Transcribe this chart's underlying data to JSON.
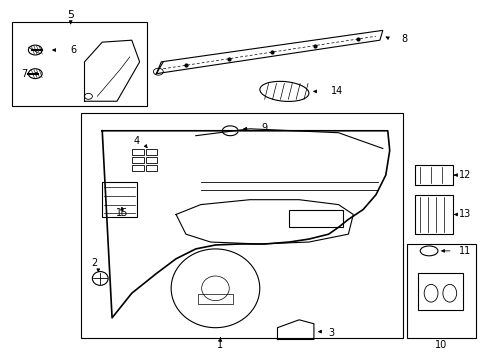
{
  "background_color": "#ffffff",
  "line_color": "#000000",
  "figure_width": 4.89,
  "figure_height": 3.6,
  "lw": 0.8
}
